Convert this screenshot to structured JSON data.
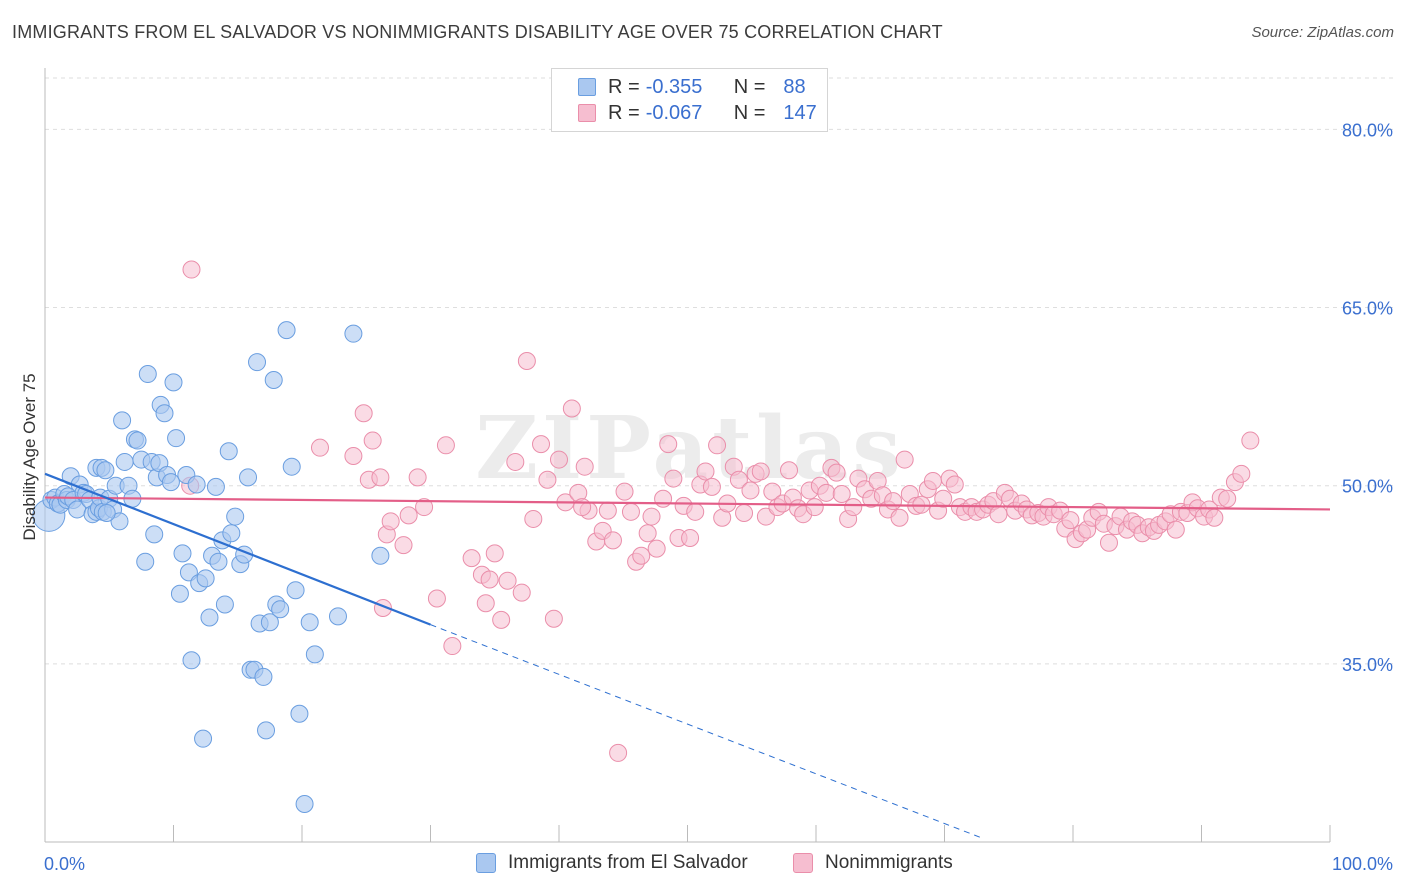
{
  "title": "IMMIGRANTS FROM EL SALVADOR VS NONIMMIGRANTS DISABILITY AGE OVER 75 CORRELATION CHART",
  "source": "Source: ZipAtlas.com",
  "legend": {
    "rows": [
      {
        "r_label": "R =",
        "r_value": "-0.355",
        "n_label": "N =",
        "n_value": "88"
      },
      {
        "r_label": "R =",
        "r_value": "-0.067",
        "n_label": "N =",
        "n_value": "147"
      }
    ]
  },
  "bottom_legend": [
    "Immigrants from El Salvador",
    "Nonimmigrants"
  ],
  "watermark": "ZIPatlas",
  "colors": {
    "blue_fill": "#aac8f0",
    "blue_stroke": "#6a9ee0",
    "blue_line": "#2d6fd0",
    "pink_fill": "#f6bed0",
    "pink_stroke": "#ea8eaa",
    "pink_line": "#e35e88",
    "tick_label": "#3a6fcf",
    "grid": "#dedede"
  },
  "chart_data": {
    "type": "scatter",
    "title": "IMMIGRANTS FROM EL SALVADOR VS NONIMMIGRANTS DISABILITY AGE OVER 75 CORRELATION CHART",
    "xlabel": "",
    "ylabel": "Disability Age Over 75",
    "xlim": [
      0,
      100
    ],
    "ylim": [
      20,
      85
    ],
    "x_tick_labels": [
      "0.0%",
      "100.0%"
    ],
    "y_ticks": [
      35,
      50,
      65,
      80
    ],
    "y_tick_labels": [
      "35.0%",
      "50.0%",
      "65.0%",
      "80.0%"
    ],
    "grid": true,
    "legend_position": "top-center",
    "series": [
      {
        "name": "Immigrants from El Salvador",
        "r": -0.355,
        "n": 88,
        "trend": {
          "x0": 0,
          "y0": 51.0,
          "x1": 30,
          "y1": 38.3,
          "dashed_to": {
            "x": 73,
            "y": 20.3
          }
        },
        "points": [
          [
            0.3,
            47.5
          ],
          [
            0.5,
            48.8
          ],
          [
            0.8,
            49.0
          ],
          [
            1.0,
            48.5
          ],
          [
            1.2,
            48.4
          ],
          [
            1.5,
            49.3
          ],
          [
            1.7,
            48.8
          ],
          [
            1.8,
            49.1
          ],
          [
            2.0,
            50.8
          ],
          [
            2.2,
            48.8
          ],
          [
            2.5,
            48.0
          ],
          [
            2.7,
            50.1
          ],
          [
            3.0,
            49.4
          ],
          [
            3.2,
            49.3
          ],
          [
            3.5,
            48.8
          ],
          [
            3.7,
            47.6
          ],
          [
            4.0,
            47.8
          ],
          [
            4.2,
            48.1
          ],
          [
            4.3,
            49.0
          ],
          [
            4.5,
            47.8
          ],
          [
            4.0,
            51.5
          ],
          [
            4.4,
            51.5
          ],
          [
            4.7,
            51.3
          ],
          [
            5.0,
            48.9
          ],
          [
            5.3,
            48.0
          ],
          [
            5.5,
            50.0
          ],
          [
            5.8,
            47.0
          ],
          [
            6.0,
            55.5
          ],
          [
            6.2,
            52.0
          ],
          [
            6.5,
            50.0
          ],
          [
            6.8,
            48.9
          ],
          [
            7.0,
            53.9
          ],
          [
            7.2,
            53.8
          ],
          [
            7.5,
            52.2
          ],
          [
            7.8,
            43.6
          ],
          [
            8.0,
            59.4
          ],
          [
            8.3,
            52.0
          ],
          [
            8.5,
            45.9
          ],
          [
            8.7,
            50.7
          ],
          [
            8.9,
            51.9
          ],
          [
            9.0,
            56.8
          ],
          [
            9.3,
            56.1
          ],
          [
            9.5,
            50.9
          ],
          [
            9.8,
            50.3
          ],
          [
            10.0,
            58.7
          ],
          [
            10.2,
            54.0
          ],
          [
            10.5,
            40.9
          ],
          [
            10.7,
            44.3
          ],
          [
            11.0,
            50.9
          ],
          [
            11.2,
            42.7
          ],
          [
            11.4,
            35.3
          ],
          [
            11.8,
            50.1
          ],
          [
            12.0,
            41.8
          ],
          [
            12.3,
            28.7
          ],
          [
            12.5,
            42.2
          ],
          [
            12.8,
            38.9
          ],
          [
            13.0,
            44.1
          ],
          [
            13.3,
            49.9
          ],
          [
            13.5,
            43.6
          ],
          [
            13.8,
            45.4
          ],
          [
            14.0,
            40.0
          ],
          [
            14.3,
            52.9
          ],
          [
            14.5,
            46.0
          ],
          [
            14.8,
            47.4
          ],
          [
            15.2,
            43.4
          ],
          [
            15.5,
            44.2
          ],
          [
            15.8,
            50.7
          ],
          [
            16.0,
            34.5
          ],
          [
            16.3,
            34.5
          ],
          [
            16.5,
            60.4
          ],
          [
            16.7,
            38.4
          ],
          [
            17.0,
            33.9
          ],
          [
            17.2,
            29.4
          ],
          [
            17.5,
            38.5
          ],
          [
            17.8,
            58.9
          ],
          [
            18.0,
            40.0
          ],
          [
            18.3,
            39.6
          ],
          [
            18.8,
            63.1
          ],
          [
            19.2,
            51.6
          ],
          [
            19.5,
            41.2
          ],
          [
            19.8,
            30.8
          ],
          [
            20.2,
            23.2
          ],
          [
            20.6,
            38.5
          ],
          [
            21.0,
            35.8
          ],
          [
            22.8,
            39.0
          ],
          [
            24.0,
            62.8
          ],
          [
            26.1,
            44.1
          ],
          [
            4.8,
            47.7
          ]
        ]
      },
      {
        "name": "Nonimmigrants",
        "r": -0.067,
        "n": 147,
        "trend": {
          "x0": 0,
          "y0": 49.0,
          "x1": 100,
          "y1": 48.0
        },
        "points": [
          [
            11.3,
            50.0
          ],
          [
            11.4,
            68.2
          ],
          [
            21.4,
            53.2
          ],
          [
            24.0,
            52.5
          ],
          [
            24.8,
            56.1
          ],
          [
            25.2,
            50.5
          ],
          [
            25.5,
            53.8
          ],
          [
            26.1,
            50.7
          ],
          [
            26.3,
            39.7
          ],
          [
            26.6,
            45.9
          ],
          [
            26.9,
            47.0
          ],
          [
            27.9,
            45.0
          ],
          [
            28.3,
            47.5
          ],
          [
            29.0,
            50.7
          ],
          [
            29.5,
            48.2
          ],
          [
            30.5,
            40.5
          ],
          [
            31.2,
            53.4
          ],
          [
            31.7,
            36.5
          ],
          [
            33.2,
            43.9
          ],
          [
            34.0,
            42.5
          ],
          [
            34.3,
            40.1
          ],
          [
            34.6,
            42.1
          ],
          [
            35.0,
            44.3
          ],
          [
            35.5,
            38.7
          ],
          [
            36.0,
            42.0
          ],
          [
            36.6,
            52.0
          ],
          [
            37.1,
            41.0
          ],
          [
            37.5,
            60.5
          ],
          [
            38.0,
            47.2
          ],
          [
            38.6,
            53.5
          ],
          [
            39.1,
            50.5
          ],
          [
            39.6,
            38.8
          ],
          [
            40.0,
            52.2
          ],
          [
            40.5,
            48.6
          ],
          [
            41.0,
            56.5
          ],
          [
            41.5,
            49.4
          ],
          [
            42.0,
            51.6
          ],
          [
            42.3,
            47.9
          ],
          [
            42.9,
            45.3
          ],
          [
            43.4,
            46.2
          ],
          [
            43.8,
            47.9
          ],
          [
            44.2,
            45.4
          ],
          [
            44.6,
            27.5
          ],
          [
            45.1,
            49.5
          ],
          [
            45.6,
            47.8
          ],
          [
            46.0,
            43.6
          ],
          [
            46.4,
            44.1
          ],
          [
            46.9,
            46.0
          ],
          [
            47.2,
            47.4
          ],
          [
            47.6,
            44.7
          ],
          [
            48.1,
            48.9
          ],
          [
            48.5,
            53.5
          ],
          [
            48.9,
            50.6
          ],
          [
            49.3,
            45.6
          ],
          [
            49.7,
            48.3
          ],
          [
            50.2,
            45.6
          ],
          [
            50.6,
            47.8
          ],
          [
            51.0,
            50.1
          ],
          [
            51.4,
            51.2
          ],
          [
            51.9,
            49.9
          ],
          [
            52.3,
            53.4
          ],
          [
            52.7,
            47.3
          ],
          [
            53.1,
            48.5
          ],
          [
            53.6,
            51.6
          ],
          [
            54.0,
            50.5
          ],
          [
            54.4,
            47.7
          ],
          [
            54.9,
            49.6
          ],
          [
            55.3,
            51.0
          ],
          [
            55.7,
            51.2
          ],
          [
            56.1,
            47.4
          ],
          [
            56.6,
            49.5
          ],
          [
            57.0,
            48.2
          ],
          [
            57.4,
            48.5
          ],
          [
            57.9,
            51.3
          ],
          [
            58.2,
            49.0
          ],
          [
            58.6,
            48.1
          ],
          [
            59.0,
            47.6
          ],
          [
            59.5,
            49.6
          ],
          [
            59.9,
            48.2
          ],
          [
            60.3,
            50.0
          ],
          [
            60.8,
            49.4
          ],
          [
            61.2,
            51.5
          ],
          [
            61.6,
            51.1
          ],
          [
            62.0,
            49.3
          ],
          [
            62.5,
            47.2
          ],
          [
            62.9,
            48.2
          ],
          [
            63.3,
            50.6
          ],
          [
            63.8,
            49.7
          ],
          [
            64.3,
            48.9
          ],
          [
            64.8,
            50.4
          ],
          [
            65.2,
            49.2
          ],
          [
            65.6,
            48.0
          ],
          [
            66.0,
            48.7
          ],
          [
            66.5,
            47.3
          ],
          [
            66.9,
            52.2
          ],
          [
            67.3,
            49.3
          ],
          [
            67.8,
            48.3
          ],
          [
            68.2,
            48.4
          ],
          [
            68.7,
            49.7
          ],
          [
            69.1,
            50.4
          ],
          [
            69.5,
            47.9
          ],
          [
            69.9,
            48.9
          ],
          [
            70.4,
            50.6
          ],
          [
            70.8,
            50.1
          ],
          [
            71.2,
            48.2
          ],
          [
            71.6,
            47.8
          ],
          [
            72.1,
            48.2
          ],
          [
            72.5,
            47.8
          ],
          [
            73.0,
            48.0
          ],
          [
            73.4,
            48.4
          ],
          [
            73.8,
            48.7
          ],
          [
            74.2,
            47.6
          ],
          [
            74.7,
            49.4
          ],
          [
            75.1,
            48.9
          ],
          [
            75.5,
            47.9
          ],
          [
            76.0,
            48.5
          ],
          [
            76.4,
            48.0
          ],
          [
            76.8,
            47.5
          ],
          [
            77.3,
            47.7
          ],
          [
            77.7,
            47.4
          ],
          [
            78.1,
            48.2
          ],
          [
            78.5,
            47.6
          ],
          [
            79.0,
            47.9
          ],
          [
            79.4,
            46.4
          ],
          [
            79.8,
            47.1
          ],
          [
            80.2,
            45.5
          ],
          [
            80.7,
            46.0
          ],
          [
            81.1,
            46.3
          ],
          [
            81.5,
            47.3
          ],
          [
            82.0,
            47.8
          ],
          [
            82.4,
            46.8
          ],
          [
            82.8,
            45.2
          ],
          [
            83.3,
            46.6
          ],
          [
            83.7,
            47.4
          ],
          [
            84.2,
            46.3
          ],
          [
            84.6,
            47.0
          ],
          [
            85.0,
            46.7
          ],
          [
            85.4,
            46.0
          ],
          [
            85.9,
            46.5
          ],
          [
            86.3,
            46.2
          ],
          [
            86.7,
            46.7
          ],
          [
            87.2,
            47.0
          ],
          [
            87.6,
            47.6
          ],
          [
            88.0,
            46.3
          ],
          [
            88.4,
            47.8
          ],
          [
            88.9,
            47.7
          ],
          [
            89.3,
            48.6
          ],
          [
            89.7,
            48.1
          ],
          [
            90.2,
            47.4
          ],
          [
            90.6,
            48.0
          ],
          [
            91.0,
            47.3
          ],
          [
            91.5,
            49.0
          ],
          [
            92.0,
            48.9
          ],
          [
            92.6,
            50.3
          ],
          [
            93.1,
            51.0
          ],
          [
            93.8,
            53.8
          ],
          [
            41.8,
            48.2
          ]
        ]
      }
    ]
  }
}
